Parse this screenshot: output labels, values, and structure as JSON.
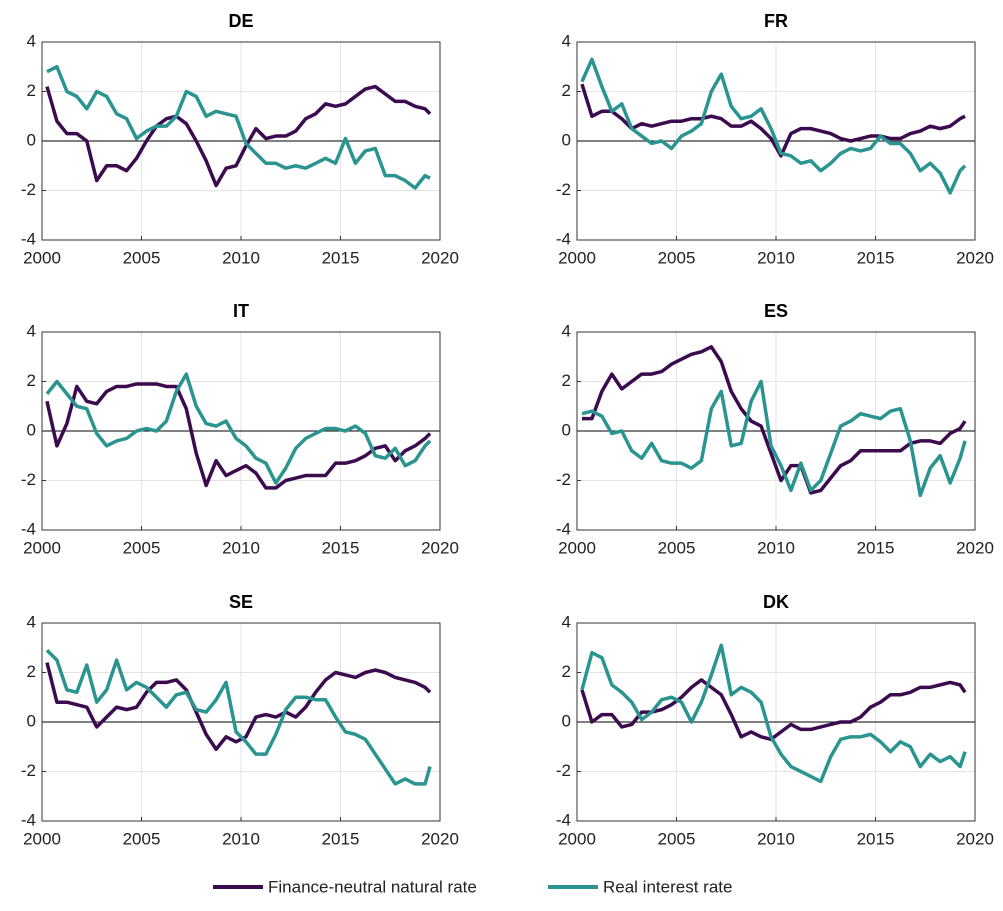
{
  "chart_data": [
    {
      "type": "line",
      "title": "DE",
      "x": [
        2000.25,
        2000.75,
        2001.25,
        2001.75,
        2002.25,
        2002.75,
        2003.25,
        2003.75,
        2004.25,
        2004.75,
        2005.25,
        2005.75,
        2006.25,
        2006.75,
        2007.25,
        2007.75,
        2008.25,
        2008.75,
        2009.25,
        2009.75,
        2010.25,
        2010.75,
        2011.25,
        2011.75,
        2012.25,
        2012.75,
        2013.25,
        2013.75,
        2014.25,
        2014.75,
        2015.25,
        2015.75,
        2016.25,
        2016.75,
        2017.25,
        2017.75,
        2018.25,
        2018.75,
        2019.25,
        2019.5
      ],
      "series": [
        {
          "name": "Finance-neutral natural rate",
          "color": "#3b0a4f",
          "values": [
            2.2,
            0.8,
            0.3,
            0.3,
            0.0,
            -1.6,
            -1.0,
            -1.0,
            -1.2,
            -0.7,
            0.0,
            0.6,
            0.9,
            1.0,
            0.7,
            0.0,
            -0.8,
            -1.8,
            -1.1,
            -1.0,
            -0.2,
            0.5,
            0.1,
            0.2,
            0.2,
            0.4,
            0.9,
            1.1,
            1.5,
            1.4,
            1.5,
            1.8,
            2.1,
            2.2,
            1.9,
            1.6,
            1.6,
            1.4,
            1.3,
            1.1
          ]
        },
        {
          "name": "Real interest rate",
          "color": "#2a9490",
          "values": [
            2.8,
            3.0,
            2.0,
            1.8,
            1.3,
            2.0,
            1.8,
            1.1,
            0.9,
            0.1,
            0.4,
            0.6,
            0.6,
            1.0,
            2.0,
            1.8,
            1.0,
            1.2,
            1.1,
            1.0,
            -0.1,
            -0.5,
            -0.9,
            -0.9,
            -1.1,
            -1.0,
            -1.1,
            -0.9,
            -0.7,
            -0.9,
            0.1,
            -0.9,
            -0.4,
            -0.3,
            -1.4,
            -1.4,
            -1.6,
            -1.9,
            -1.4,
            -1.5
          ]
        }
      ],
      "xlim": [
        2000,
        2020
      ],
      "xticks": [
        2000,
        2005,
        2010,
        2015,
        2020
      ],
      "ylim": [
        -4,
        4
      ],
      "yticks": [
        -4,
        -2,
        0,
        2,
        4
      ],
      "grid": true
    },
    {
      "type": "line",
      "title": "FR",
      "x": [
        2000.25,
        2000.75,
        2001.25,
        2001.75,
        2002.25,
        2002.75,
        2003.25,
        2003.75,
        2004.25,
        2004.75,
        2005.25,
        2005.75,
        2006.25,
        2006.75,
        2007.25,
        2007.75,
        2008.25,
        2008.75,
        2009.25,
        2009.75,
        2010.25,
        2010.75,
        2011.25,
        2011.75,
        2012.25,
        2012.75,
        2013.25,
        2013.75,
        2014.25,
        2014.75,
        2015.25,
        2015.75,
        2016.25,
        2016.75,
        2017.25,
        2017.75,
        2018.25,
        2018.75,
        2019.25,
        2019.5
      ],
      "series": [
        {
          "color": "#3b0a4f",
          "values": [
            2.3,
            1.0,
            1.2,
            1.2,
            0.9,
            0.5,
            0.7,
            0.6,
            0.7,
            0.8,
            0.8,
            0.9,
            0.9,
            1.0,
            0.9,
            0.6,
            0.6,
            0.8,
            0.5,
            0.1,
            -0.6,
            0.3,
            0.5,
            0.5,
            0.4,
            0.3,
            0.1,
            0.0,
            0.1,
            0.2,
            0.2,
            0.1,
            0.1,
            0.3,
            0.4,
            0.6,
            0.5,
            0.6,
            0.9,
            1.0
          ]
        },
        {
          "color": "#2a9490",
          "values": [
            2.4,
            3.3,
            2.2,
            1.2,
            1.5,
            0.5,
            0.2,
            -0.1,
            0.0,
            -0.3,
            0.2,
            0.4,
            0.7,
            2.0,
            2.7,
            1.4,
            0.9,
            1.0,
            1.3,
            0.5,
            -0.5,
            -0.6,
            -0.9,
            -0.8,
            -1.2,
            -0.9,
            -0.5,
            -0.3,
            -0.4,
            -0.3,
            0.2,
            -0.1,
            -0.1,
            -0.5,
            -1.2,
            -0.9,
            -1.3,
            -2.1,
            -1.2,
            -1.0
          ]
        }
      ],
      "xlim": [
        2000,
        2020
      ],
      "xticks": [
        2000,
        2005,
        2010,
        2015,
        2020
      ],
      "ylim": [
        -4,
        4
      ],
      "yticks": [
        -4,
        -2,
        0,
        2,
        4
      ],
      "grid": true
    },
    {
      "type": "line",
      "title": "IT",
      "x": [
        2000.25,
        2000.75,
        2001.25,
        2001.75,
        2002.25,
        2002.75,
        2003.25,
        2003.75,
        2004.25,
        2004.75,
        2005.25,
        2005.75,
        2006.25,
        2006.75,
        2007.25,
        2007.75,
        2008.25,
        2008.75,
        2009.25,
        2009.75,
        2010.25,
        2010.75,
        2011.25,
        2011.75,
        2012.25,
        2012.75,
        2013.25,
        2013.75,
        2014.25,
        2014.75,
        2015.25,
        2015.75,
        2016.25,
        2016.75,
        2017.25,
        2017.75,
        2018.25,
        2018.75,
        2019.25,
        2019.5
      ],
      "series": [
        {
          "color": "#3b0a4f",
          "values": [
            1.2,
            -0.6,
            0.3,
            1.8,
            1.2,
            1.1,
            1.6,
            1.8,
            1.8,
            1.9,
            1.9,
            1.9,
            1.8,
            1.8,
            0.9,
            -0.9,
            -2.2,
            -1.2,
            -1.8,
            -1.6,
            -1.4,
            -1.7,
            -2.3,
            -2.3,
            -2.0,
            -1.9,
            -1.8,
            -1.8,
            -1.8,
            -1.3,
            -1.3,
            -1.2,
            -1.0,
            -0.7,
            -0.6,
            -1.2,
            -0.8,
            -0.6,
            -0.3,
            -0.1
          ]
        },
        {
          "color": "#2a9490",
          "values": [
            1.5,
            2.0,
            1.5,
            1.0,
            0.9,
            -0.1,
            -0.6,
            -0.4,
            -0.3,
            0.0,
            0.1,
            0.0,
            0.4,
            1.6,
            2.3,
            1.0,
            0.3,
            0.2,
            0.4,
            -0.3,
            -0.6,
            -1.1,
            -1.3,
            -2.1,
            -1.5,
            -0.7,
            -0.3,
            -0.1,
            0.1,
            0.1,
            0.0,
            0.2,
            -0.1,
            -1.0,
            -1.1,
            -0.7,
            -1.4,
            -1.2,
            -0.6,
            -0.4
          ]
        }
      ],
      "xlim": [
        2000,
        2020
      ],
      "xticks": [
        2000,
        2005,
        2010,
        2015,
        2020
      ],
      "ylim": [
        -4,
        4
      ],
      "yticks": [
        -4,
        -2,
        0,
        2,
        4
      ],
      "grid": true
    },
    {
      "type": "line",
      "title": "ES",
      "x": [
        2000.25,
        2000.75,
        2001.25,
        2001.75,
        2002.25,
        2002.75,
        2003.25,
        2003.75,
        2004.25,
        2004.75,
        2005.25,
        2005.75,
        2006.25,
        2006.75,
        2007.25,
        2007.75,
        2008.25,
        2008.75,
        2009.25,
        2009.75,
        2010.25,
        2010.75,
        2011.25,
        2011.75,
        2012.25,
        2012.75,
        2013.25,
        2013.75,
        2014.25,
        2014.75,
        2015.25,
        2015.75,
        2016.25,
        2016.75,
        2017.25,
        2017.75,
        2018.25,
        2018.75,
        2019.25,
        2019.5
      ],
      "series": [
        {
          "color": "#3b0a4f",
          "values": [
            0.5,
            0.5,
            1.6,
            2.3,
            1.7,
            2.0,
            2.3,
            2.3,
            2.4,
            2.7,
            2.9,
            3.1,
            3.2,
            3.4,
            2.8,
            1.6,
            0.9,
            0.4,
            0.2,
            -0.9,
            -2.0,
            -1.4,
            -1.4,
            -2.5,
            -2.4,
            -1.9,
            -1.4,
            -1.2,
            -0.8,
            -0.8,
            -0.8,
            -0.8,
            -0.8,
            -0.5,
            -0.4,
            -0.4,
            -0.5,
            -0.1,
            0.1,
            0.4
          ]
        },
        {
          "color": "#2a9490",
          "values": [
            0.7,
            0.8,
            0.6,
            -0.1,
            0.0,
            -0.8,
            -1.1,
            -0.5,
            -1.2,
            -1.3,
            -1.3,
            -1.5,
            -1.2,
            0.9,
            1.6,
            -0.6,
            -0.5,
            1.2,
            2.0,
            -0.6,
            -1.4,
            -2.4,
            -1.3,
            -2.4,
            -2.0,
            -0.9,
            0.2,
            0.4,
            0.7,
            0.6,
            0.5,
            0.8,
            0.9,
            -0.4,
            -2.6,
            -1.5,
            -1.0,
            -2.1,
            -1.1,
            -0.4
          ]
        }
      ],
      "xlim": [
        2000,
        2020
      ],
      "xticks": [
        2000,
        2005,
        2010,
        2015,
        2020
      ],
      "ylim": [
        -4,
        4
      ],
      "yticks": [
        -4,
        -2,
        0,
        2,
        4
      ],
      "grid": true
    },
    {
      "type": "line",
      "title": "SE",
      "x": [
        2000.25,
        2000.75,
        2001.25,
        2001.75,
        2002.25,
        2002.75,
        2003.25,
        2003.75,
        2004.25,
        2004.75,
        2005.25,
        2005.75,
        2006.25,
        2006.75,
        2007.25,
        2007.75,
        2008.25,
        2008.75,
        2009.25,
        2009.75,
        2010.25,
        2010.75,
        2011.25,
        2011.75,
        2012.25,
        2012.75,
        2013.25,
        2013.75,
        2014.25,
        2014.75,
        2015.25,
        2015.75,
        2016.25,
        2016.75,
        2017.25,
        2017.75,
        2018.25,
        2018.75,
        2019.25,
        2019.5
      ],
      "series": [
        {
          "color": "#3b0a4f",
          "values": [
            2.4,
            0.8,
            0.8,
            0.7,
            0.6,
            -0.2,
            0.2,
            0.6,
            0.5,
            0.6,
            1.2,
            1.6,
            1.6,
            1.7,
            1.3,
            0.4,
            -0.5,
            -1.1,
            -0.6,
            -0.8,
            -0.6,
            0.2,
            0.3,
            0.2,
            0.4,
            0.2,
            0.6,
            1.2,
            1.7,
            2.0,
            1.9,
            1.8,
            2.0,
            2.1,
            2.0,
            1.8,
            1.7,
            1.6,
            1.4,
            1.2
          ]
        },
        {
          "color": "#2a9490",
          "values": [
            2.9,
            2.5,
            1.3,
            1.2,
            2.3,
            0.8,
            1.3,
            2.5,
            1.3,
            1.6,
            1.4,
            1.0,
            0.6,
            1.1,
            1.2,
            0.5,
            0.4,
            0.9,
            1.6,
            -0.4,
            -0.8,
            -1.3,
            -1.3,
            -0.5,
            0.5,
            1.0,
            1.0,
            0.9,
            0.9,
            0.2,
            -0.4,
            -0.5,
            -0.7,
            -1.3,
            -1.9,
            -2.5,
            -2.3,
            -2.5,
            -2.5,
            -1.8
          ]
        }
      ],
      "xlim": [
        2000,
        2020
      ],
      "xticks": [
        2000,
        2005,
        2010,
        2015,
        2020
      ],
      "ylim": [
        -4,
        4
      ],
      "yticks": [
        -4,
        -2,
        0,
        2,
        4
      ],
      "grid": true
    },
    {
      "type": "line",
      "title": "DK",
      "x": [
        2000.25,
        2000.75,
        2001.25,
        2001.75,
        2002.25,
        2002.75,
        2003.25,
        2003.75,
        2004.25,
        2004.75,
        2005.25,
        2005.75,
        2006.25,
        2006.75,
        2007.25,
        2007.75,
        2008.25,
        2008.75,
        2009.25,
        2009.75,
        2010.25,
        2010.75,
        2011.25,
        2011.75,
        2012.25,
        2012.75,
        2013.25,
        2013.75,
        2014.25,
        2014.75,
        2015.25,
        2015.75,
        2016.25,
        2016.75,
        2017.25,
        2017.75,
        2018.25,
        2018.75,
        2019.25,
        2019.5
      ],
      "series": [
        {
          "color": "#3b0a4f",
          "values": [
            1.3,
            0.0,
            0.3,
            0.3,
            -0.2,
            -0.1,
            0.4,
            0.4,
            0.5,
            0.7,
            1.0,
            1.4,
            1.7,
            1.4,
            1.1,
            0.3,
            -0.6,
            -0.4,
            -0.6,
            -0.7,
            -0.4,
            -0.1,
            -0.3,
            -0.3,
            -0.2,
            -0.1,
            0.0,
            0.0,
            0.2,
            0.6,
            0.8,
            1.1,
            1.1,
            1.2,
            1.4,
            1.4,
            1.5,
            1.6,
            1.5,
            1.2
          ]
        },
        {
          "color": "#2a9490",
          "values": [
            1.3,
            2.8,
            2.6,
            1.5,
            1.2,
            0.8,
            0.1,
            0.4,
            0.9,
            1.0,
            0.8,
            0.0,
            0.8,
            1.9,
            3.1,
            1.1,
            1.4,
            1.2,
            0.8,
            -0.6,
            -1.3,
            -1.8,
            -2.0,
            -2.2,
            -2.4,
            -1.4,
            -0.7,
            -0.6,
            -0.6,
            -0.5,
            -0.8,
            -1.2,
            -0.8,
            -1.0,
            -1.8,
            -1.3,
            -1.6,
            -1.4,
            -1.8,
            -1.2
          ]
        }
      ],
      "xlim": [
        2000,
        2020
      ],
      "xticks": [
        2000,
        2005,
        2010,
        2015,
        2020
      ],
      "ylim": [
        -4,
        4
      ],
      "yticks": [
        -4,
        -2,
        0,
        2,
        4
      ],
      "grid": true
    }
  ]
}
